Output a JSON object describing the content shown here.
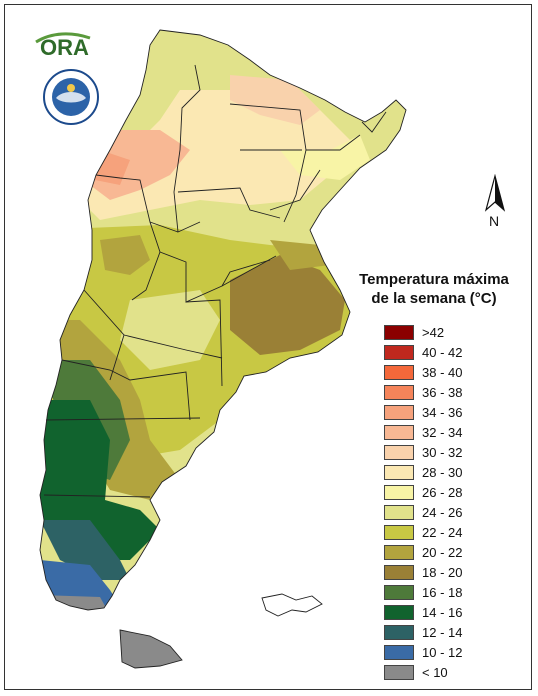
{
  "map": {
    "legend": {
      "title": "Temperatura máxima\nde la semana (°C)",
      "items": [
        {
          "label": ">42",
          "color": "#8b0000"
        },
        {
          "label": "40 - 42",
          "color": "#c0281e"
        },
        {
          "label": "38 - 40",
          "color": "#f4683a"
        },
        {
          "label": "36 - 38",
          "color": "#f5845a"
        },
        {
          "label": "34 - 36",
          "color": "#f6a27c"
        },
        {
          "label": "32 - 34",
          "color": "#f8b894"
        },
        {
          "label": "30 - 32",
          "color": "#f9d2ac"
        },
        {
          "label": "28 - 30",
          "color": "#fbe8b3"
        },
        {
          "label": "26 - 28",
          "color": "#f8f4a6"
        },
        {
          "label": "24 - 26",
          "color": "#e1e28b"
        },
        {
          "label": "22 - 24",
          "color": "#c8c844"
        },
        {
          "label": "20 - 22",
          "color": "#b2a43e"
        },
        {
          "label": "18 - 20",
          "color": "#9a8036"
        },
        {
          "label": "16 - 18",
          "color": "#4e7a3a"
        },
        {
          "label": "14 - 16",
          "color": "#11632e"
        },
        {
          "label": "12 - 14",
          "color": "#2d6265"
        },
        {
          "label": "10 - 12",
          "color": "#3a6ba6"
        },
        {
          "label": "< 10",
          "color": "#8a8a8a"
        }
      ]
    },
    "north_label": "N",
    "logos": {
      "ora_text": "ORA"
    }
  }
}
